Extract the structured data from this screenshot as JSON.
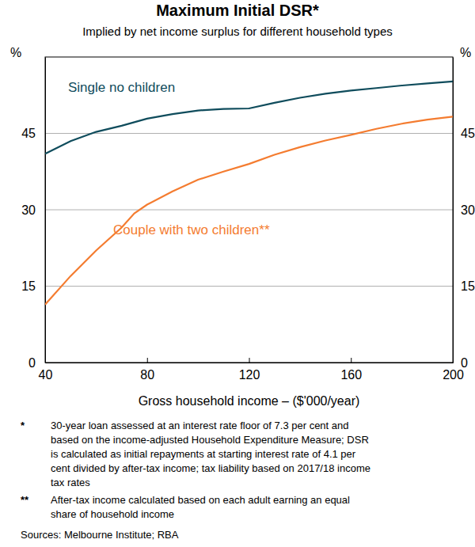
{
  "chart_data": {
    "type": "line",
    "title": "Maximum Initial DSR*",
    "subtitle": "Implied by net income surplus for different household types",
    "x_label": "Gross household income – ($'000/year)",
    "y_label": "%",
    "x": [
      40,
      50,
      60,
      70,
      75,
      80,
      90,
      100,
      110,
      120,
      130,
      140,
      150,
      160,
      170,
      180,
      190,
      200
    ],
    "series": [
      {
        "name": "Single no children",
        "color": "#0f4c5c",
        "values": [
          41,
          43.5,
          45.3,
          46.5,
          47.2,
          47.9,
          48.8,
          49.5,
          49.8,
          49.9,
          51,
          52,
          52.8,
          53.4,
          53.9,
          54.4,
          54.8,
          55.2
        ]
      },
      {
        "name": "Couple with two children**",
        "color": "#f47c30",
        "values": [
          11.4,
          17,
          22,
          26.5,
          29.3,
          31,
          33.6,
          35.9,
          37.5,
          39,
          40.8,
          42.3,
          43.6,
          44.7,
          45.9,
          46.9,
          47.7,
          48.3
        ]
      }
    ],
    "xlim": [
      40,
      200
    ],
    "xticks": [
      40,
      80,
      120,
      160,
      200
    ],
    "ylim": [
      0,
      60
    ],
    "yticks": [
      0,
      15,
      30,
      45
    ],
    "grid": true,
    "notes": [
      {
        "marker": "*",
        "lines": [
          "30-year loan assessed at an interest rate floor of 7.3 per cent and",
          "based on the income-adjusted Household Expenditure Measure; DSR",
          "is calculated as initial repayments at starting interest rate of 4.1 per",
          "cent divided by after-tax income; tax liability based on 2017/18 income",
          "tax rates"
        ]
      },
      {
        "marker": "**",
        "lines": [
          "After-tax income calculated based on each adult earning an equal",
          "share of household income"
        ]
      }
    ],
    "sources": "Sources: Melbourne Institute; RBA"
  }
}
